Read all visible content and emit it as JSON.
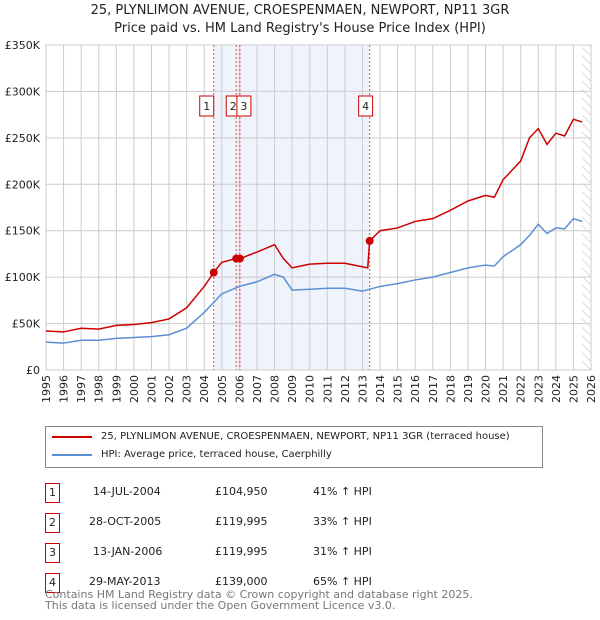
{
  "chart_data": {
    "type": "line",
    "title": "25, PLYNLIMON AVENUE, CROESPENMAEN, NEWPORT, NP11 3GR",
    "subtitle": "Price paid vs. HM Land Registry's House Price Index (HPI)",
    "xlim": [
      1995,
      2026
    ],
    "ylim": [
      0,
      350000
    ],
    "y_ticks": [
      0,
      50000,
      100000,
      150000,
      200000,
      250000,
      300000,
      350000
    ],
    "y_tick_labels": [
      "£0",
      "£50K",
      "£100K",
      "£150K",
      "£200K",
      "£250K",
      "£300K",
      "£350K"
    ],
    "x_ticks": [
      1995,
      1996,
      1997,
      1998,
      1999,
      2000,
      2001,
      2002,
      2003,
      2004,
      2005,
      2006,
      2007,
      2008,
      2009,
      2010,
      2011,
      2012,
      2013,
      2014,
      2015,
      2016,
      2017,
      2018,
      2019,
      2020,
      2021,
      2022,
      2023,
      2024,
      2025,
      2026
    ],
    "grid": true,
    "shaded_range": [
      2004.54,
      2013.41
    ],
    "hatched_from": 2025.5,
    "series": [
      {
        "name": "25, PLYNLIMON AVENUE, CROESPENMAEN, NEWPORT, NP11 3GR (terraced house)",
        "color": "#cc0000",
        "x": [
          1995,
          1996,
          1997,
          1998,
          1999,
          2000,
          2001,
          2002,
          2003,
          2004,
          2004.54,
          2005,
          2005.82,
          2006.03,
          2007,
          2008,
          2008.5,
          2009,
          2010,
          2011,
          2012,
          2013.3,
          2013.41,
          2014,
          2015,
          2016,
          2017,
          2018,
          2019,
          2020,
          2020.5,
          2021,
          2022,
          2022.5,
          2023,
          2023.5,
          2024,
          2024.5,
          2025,
          2025.5
        ],
        "y": [
          42000,
          41000,
          45000,
          44000,
          48000,
          49000,
          51000,
          55000,
          67000,
          90000,
          104950,
          116000,
          119995,
          119995,
          127000,
          135000,
          120000,
          110000,
          114000,
          115000,
          115000,
          110000,
          139000,
          150000,
          153000,
          160000,
          163000,
          172000,
          182000,
          188000,
          186000,
          205000,
          225000,
          250000,
          260000,
          243000,
          255000,
          252000,
          270000,
          267000
        ]
      },
      {
        "name": "HPI: Average price, terraced house, Caerphilly",
        "color": "#5b8fd4",
        "x": [
          1995,
          1996,
          1997,
          1998,
          1999,
          2000,
          2001,
          2002,
          2003,
          2004,
          2004.5,
          2005,
          2006,
          2007,
          2008,
          2008.5,
          2009,
          2010,
          2011,
          2012,
          2013,
          2014,
          2015,
          2016,
          2017,
          2018,
          2019,
          2020,
          2020.5,
          2021,
          2022,
          2022.5,
          2023,
          2023.5,
          2024,
          2024.5,
          2025,
          2025.5
        ],
        "y": [
          30000,
          29000,
          32000,
          32000,
          34000,
          35000,
          36000,
          38000,
          45000,
          62000,
          72000,
          82000,
          90000,
          95000,
          103000,
          100000,
          86000,
          87000,
          88000,
          88000,
          85000,
          90000,
          93000,
          97000,
          100000,
          105000,
          110000,
          113000,
          112000,
          122000,
          135000,
          145000,
          157000,
          147000,
          153000,
          152000,
          163000,
          160000
        ]
      }
    ],
    "sales": [
      {
        "n": "1",
        "x": 2004.54,
        "price": 104950
      },
      {
        "n": "2",
        "x": 2005.82,
        "price": 119995
      },
      {
        "n": "3",
        "x": 2006.03,
        "price": 119995
      },
      {
        "n": "4",
        "x": 2013.41,
        "price": 139000
      }
    ]
  },
  "legend": [
    "25, PLYNLIMON AVENUE, CROESPENMAEN, NEWPORT, NP11 3GR (terraced house)",
    "HPI: Average price, terraced house, Caerphilly"
  ],
  "table": [
    {
      "n": "1",
      "date": "14-JUL-2004",
      "price": "£104,950",
      "hpi": "41% ↑ HPI"
    },
    {
      "n": "2",
      "date": "28-OCT-2005",
      "price": "£119,995",
      "hpi": "33% ↑ HPI"
    },
    {
      "n": "3",
      "date": "13-JAN-2006",
      "price": "£119,995",
      "hpi": "31% ↑ HPI"
    },
    {
      "n": "4",
      "date": "29-MAY-2013",
      "price": "£139,000",
      "hpi": "65% ↑ HPI"
    }
  ],
  "footer": [
    "Contains HM Land Registry data © Crown copyright and database right 2025.",
    "This data is licensed under the Open Government Licence v3.0."
  ]
}
